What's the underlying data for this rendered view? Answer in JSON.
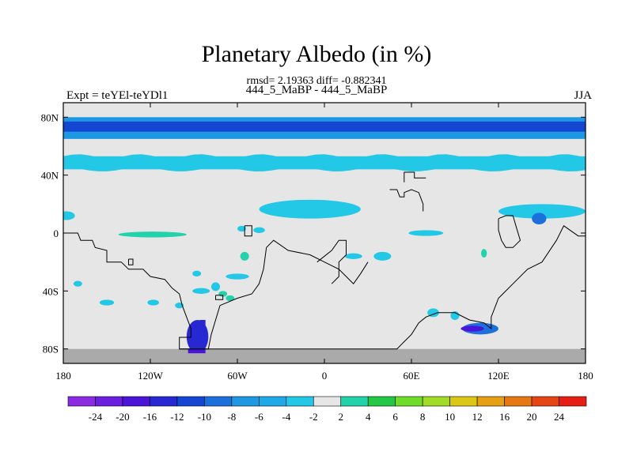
{
  "chart_data": {
    "type": "heatmap",
    "title": "Planetary Albedo (in %)",
    "subtitle": "rmsd= 2.19363 diff= -0.882341",
    "runs_label": "444_5_MaBP - 444_5_MaBP",
    "left_label": "Expt = teYEl-teYDl1",
    "right_label": "JJA",
    "xlim": [
      -180,
      180
    ],
    "ylim": [
      -90,
      90
    ],
    "x_ticks": [
      {
        "value": -180,
        "label": "180"
      },
      {
        "value": -120,
        "label": "120W"
      },
      {
        "value": -60,
        "label": "60W"
      },
      {
        "value": 0,
        "label": "0"
      },
      {
        "value": 60,
        "label": "60E"
      },
      {
        "value": 120,
        "label": "120E"
      },
      {
        "value": 180,
        "label": "180"
      }
    ],
    "y_ticks": [
      {
        "value": 80,
        "label": "80N"
      },
      {
        "value": 40,
        "label": "40N"
      },
      {
        "value": 0,
        "label": "0"
      },
      {
        "value": -40,
        "label": "40S"
      },
      {
        "value": -80,
        "label": "80S"
      }
    ],
    "colorbar": {
      "labels": [
        "-24",
        "-20",
        "-16",
        "-12",
        "-10",
        "-8",
        "-6",
        "-4",
        "-2",
        "2",
        "4",
        "6",
        "8",
        "10",
        "12",
        "16",
        "20",
        "24"
      ],
      "colors": [
        "#8a2be2",
        "#6a1ee0",
        "#4b14d8",
        "#2828d2",
        "#1446d2",
        "#1c70dc",
        "#1e98e2",
        "#1eaae6",
        "#22c8e6",
        "#e6e6e6",
        "#22d2aa",
        "#22c846",
        "#6edc28",
        "#a0dc28",
        "#dcc814",
        "#e6a014",
        "#e67814",
        "#e64614",
        "#e61e14"
      ]
    },
    "background_color": "#e6e6e6",
    "polar_mask_color": "#aaaaaa",
    "regions": [
      {
        "name": "arctic-band-outer",
        "level": "-6",
        "color": "#1e98e2",
        "lon": [
          -180,
          180
        ],
        "lat": [
          65,
          80
        ]
      },
      {
        "name": "arctic-band-core",
        "level": "-10",
        "color": "#1446d2",
        "lon": [
          -180,
          180
        ],
        "lat": [
          70,
          77
        ]
      },
      {
        "name": "midlat-band",
        "level": "-4",
        "color": "#22c8e6",
        "lon": [
          -180,
          180
        ],
        "lat": [
          44,
          53
        ]
      },
      {
        "name": "pacific-tropics",
        "level": "4",
        "color": "#22d2aa",
        "lon": [
          -142,
          -95
        ],
        "lat": [
          -3,
          1
        ]
      },
      {
        "name": "sahara-anomaly",
        "level": "-4",
        "color": "#22c8e6",
        "lon": [
          -45,
          25
        ],
        "lat": [
          10,
          23
        ]
      },
      {
        "name": "asian-monsoon",
        "level": "-4",
        "color": "#22c8e6",
        "lon": [
          120,
          180
        ],
        "lat": [
          10,
          20
        ]
      },
      {
        "name": "andes-anomaly",
        "level": "-12",
        "color": "#2828d2",
        "lon": [
          -95,
          -80
        ],
        "lat": [
          -83,
          -60
        ]
      },
      {
        "name": "southern-ocean-patch",
        "level": "-8",
        "color": "#1c70dc",
        "lon": [
          95,
          120
        ],
        "lat": [
          -70,
          -62
        ]
      }
    ],
    "grid": false
  }
}
